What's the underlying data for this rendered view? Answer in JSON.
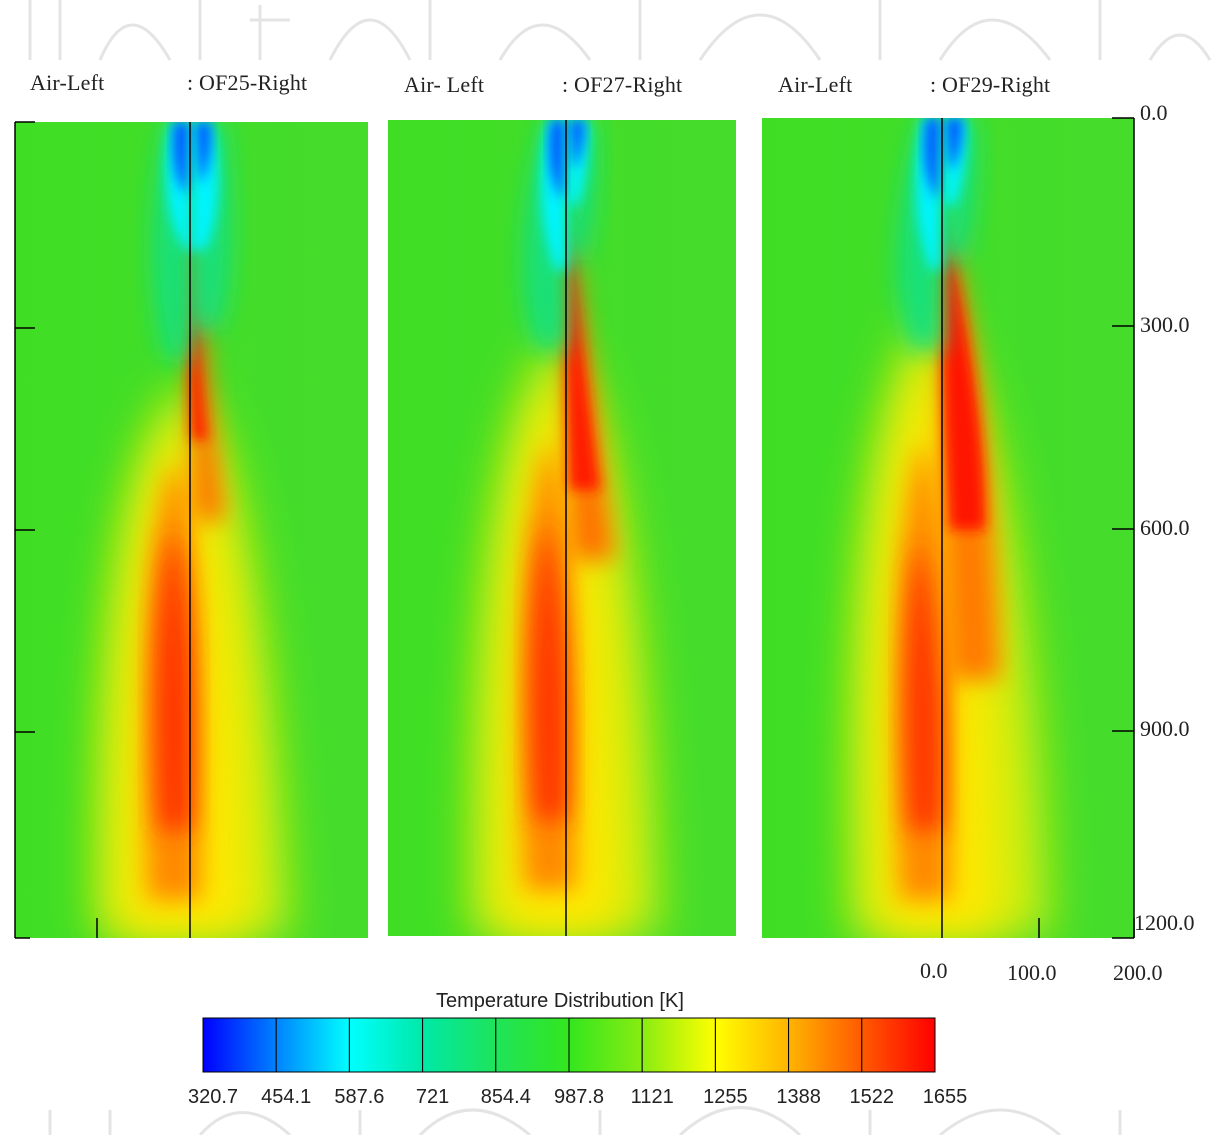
{
  "chart_data": {
    "type": "heatmap",
    "title": "",
    "panels": [
      {
        "left_label": "Air-Left",
        "right_label": ": OF25-Right",
        "peak_right_temperature": "1522"
      },
      {
        "left_label": "Air- Left",
        "right_label": ": OF27-Right",
        "peak_right_temperature": "1655"
      },
      {
        "left_label": "Air-Left",
        "right_label": ": OF29-Right",
        "peak_right_temperature": "1655"
      }
    ],
    "y_axis": {
      "ticks": [
        "0.0",
        "300.0",
        "600.0",
        "900.0",
        "1200.0"
      ],
      "range": [
        0,
        1200
      ],
      "inverted": true
    },
    "x_axis": {
      "ticks": [
        "0.0",
        "100.0",
        "200.0"
      ],
      "range": [
        0,
        200
      ]
    },
    "colorbar": {
      "title": "Temperature Distribution [K]",
      "ticks": [
        "320.7",
        "454.1",
        "587.6",
        "721",
        "854.4",
        "987.8",
        "1121",
        "1255",
        "1388",
        "1522",
        "1655"
      ],
      "colors": [
        "#0000ff",
        "#0082ff",
        "#00ffff",
        "#00e9a8",
        "#1fe35a",
        "#33e61e",
        "#88ec12",
        "#ffff00",
        "#ffb400",
        "#ff5a00",
        "#ff0000"
      ]
    }
  },
  "colors": {
    "background_field": "#3ddc2a",
    "hot": "#ff2a00",
    "cold": "#0000ff"
  }
}
